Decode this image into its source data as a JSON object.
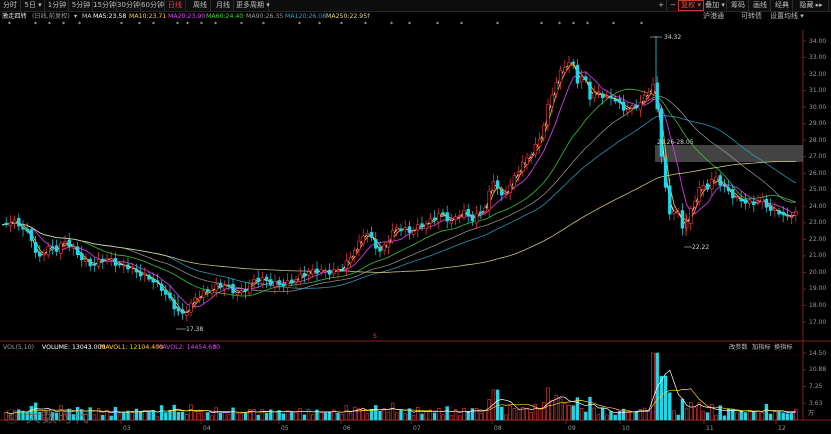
{
  "toolbar": {
    "left_tabs": [
      "分时",
      "5日 ▾",
      "1分钟",
      "5分钟",
      "15分钟",
      "30分钟",
      "60分钟",
      "日线",
      "周线",
      "月线",
      "更多周期 ▾"
    ],
    "active_tab": "日线",
    "right_buttons": [
      "+",
      "−",
      "复权 ▾",
      "叠加 ▾",
      "筹码",
      "画线",
      "经典",
      "隐藏 ▸▸"
    ]
  },
  "indicator_line": {
    "name": "激走四转",
    "mode": "(日线,前复权)",
    "ma_label": "MA",
    "ma5": "MA5:23.58",
    "ma10": "MA10:23.71",
    "ma20": "MA20:23.90",
    "ma60": "MA60:24.40",
    "ma90": "MA90:26.35",
    "ma120": "MA120:26.08",
    "ma250": "MA250:22.95",
    "arrow": "↑"
  },
  "right_tabs": [
    "沪港通",
    "可转债",
    "设置均线 ▾"
  ],
  "price_axis": {
    "labels": [
      "34.00",
      "33.00",
      "32.00",
      "31.00",
      "30.00",
      "29.00",
      "28.00",
      "27.00",
      "26.00",
      "25.00",
      "24.00",
      "23.00",
      "22.00",
      "21.00",
      "20.00",
      "19.00",
      "18.00",
      "17.00"
    ],
    "ticks": [
      34,
      33,
      32,
      31,
      30,
      29,
      28,
      27,
      26,
      25,
      24,
      23,
      22,
      21,
      20,
      19,
      18,
      17
    ]
  },
  "annotations": {
    "high": "34.32",
    "low_left": "17.38",
    "low_right": "22.22",
    "box_label": "28.26-28.05",
    "signal": "S"
  },
  "volume_line": {
    "name": "VOL(5,10)",
    "volume": "VOLUME: 13043.000",
    "mavol1": "MAVOL1: 12104.400",
    "mavol2": "MAVOL2: 14454.600",
    "arrow": "↑",
    "buttons": [
      "改参数",
      "加指标",
      "换指标"
    ]
  },
  "volume_axis": {
    "labels": [
      "14.50",
      "10.88",
      "7.25",
      "3.63"
    ],
    "ticks": [
      14.5,
      10.88,
      7.25,
      3.63
    ],
    "unit": "万"
  },
  "x_axis": {
    "labels": [
      "03",
      "04",
      "05",
      "06",
      "07",
      "08",
      "09",
      "10",
      "11",
      "12"
    ]
  },
  "watermark": "大数时代",
  "colors": {
    "up": "#ff3a3a",
    "down": "#22d6e6",
    "ma5": "#ffffff",
    "ma10": "#ffd21f",
    "ma20": "#e040fb",
    "ma60": "#3cd73c",
    "ma90": "#9a9a9a",
    "ma120": "#2aa6c8",
    "ma250": "#e0d890"
  }
}
